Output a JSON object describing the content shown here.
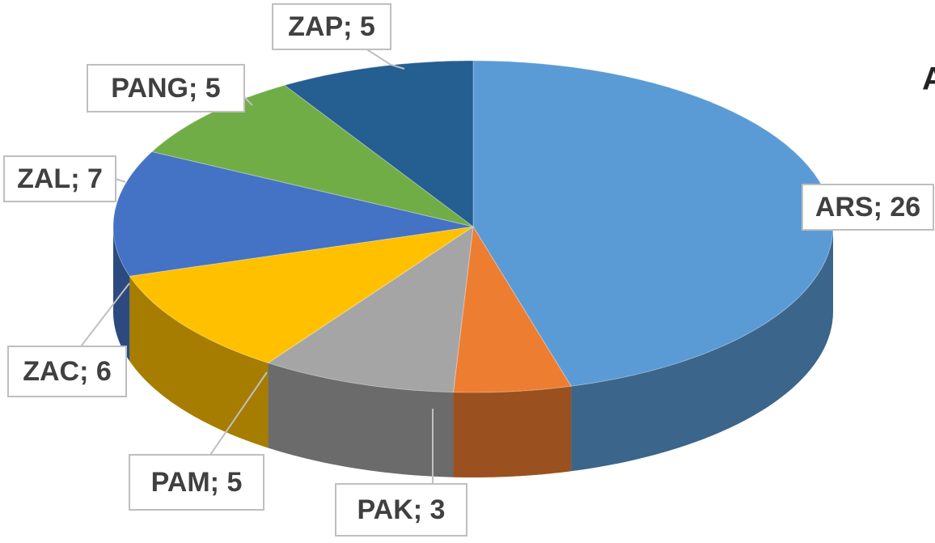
{
  "chart_data": {
    "type": "pie3d",
    "title": "A",
    "categories": [
      "ARS",
      "PAK",
      "PAM",
      "ZAC",
      "ZAL",
      "PANG",
      "ZAP"
    ],
    "values": [
      26,
      3,
      5,
      6,
      7,
      5,
      5
    ],
    "value_labels": [
      "ARS; 26",
      "PAK; 3",
      "PAM; 5",
      "ZAC; 6",
      "ZAL; 7",
      "PANG; 5",
      "ZAP; 5"
    ],
    "colors": [
      "#5b9bd5",
      "#ed7d31",
      "#a5a5a5",
      "#ffc000",
      "#4472c4",
      "#70ad47",
      "#255e91"
    ]
  }
}
